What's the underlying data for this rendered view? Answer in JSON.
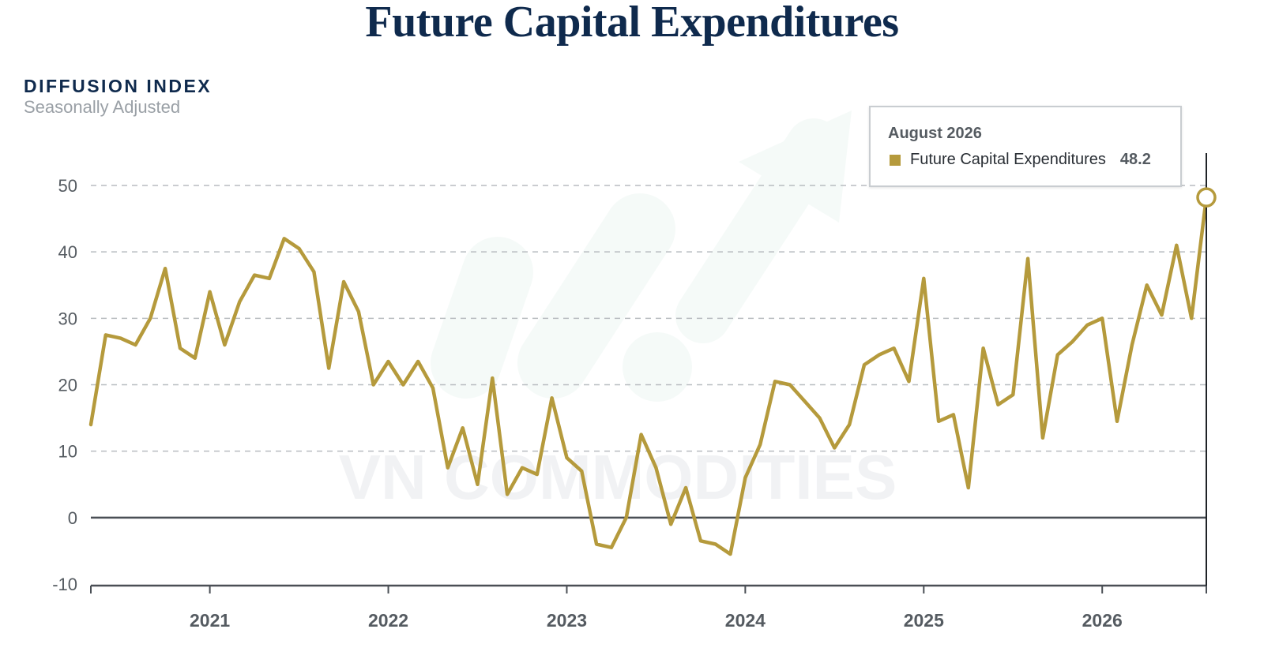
{
  "title": "Future Capital Expenditures",
  "y_axis": {
    "title": "DIFFUSION INDEX",
    "subtitle": "Seasonally Adjusted"
  },
  "watermark": "VN COMMODITIES",
  "tooltip": {
    "date": "August 2026",
    "series": "Future Capital Expenditures",
    "value": "48.2"
  },
  "colors": {
    "series": "#b59a3c",
    "text_dark": "#0f2a4d",
    "axis_text": "#555b61",
    "grid": "#b8bcc0"
  },
  "chart_data": {
    "type": "line",
    "title": "Future Capital Expenditures",
    "ylabel": "DIFFUSION INDEX",
    "ylim": [
      -10,
      50
    ],
    "yticks": [
      50,
      40,
      30,
      20,
      10,
      0,
      -10
    ],
    "xlim": [
      "2020-05",
      "2026-08"
    ],
    "xticks": [
      "2021",
      "2022",
      "2023",
      "2024",
      "2025",
      "2026"
    ],
    "grid": true,
    "legend": "tooltip top-right",
    "series": [
      {
        "name": "Future Capital Expenditures",
        "x": [
          "2020-05",
          "2020-06",
          "2020-07",
          "2020-08",
          "2020-09",
          "2020-10",
          "2020-11",
          "2020-12",
          "2021-01",
          "2021-02",
          "2021-03",
          "2021-04",
          "2021-05",
          "2021-06",
          "2021-07",
          "2021-08",
          "2021-09",
          "2021-10",
          "2021-11",
          "2021-12",
          "2022-01",
          "2022-02",
          "2022-03",
          "2022-04",
          "2022-05",
          "2022-06",
          "2022-07",
          "2022-08",
          "2022-09",
          "2022-10",
          "2022-11",
          "2022-12",
          "2023-01",
          "2023-02",
          "2023-03",
          "2023-04",
          "2023-05",
          "2023-06",
          "2023-07",
          "2023-08",
          "2023-09",
          "2023-10",
          "2023-11",
          "2023-12",
          "2024-01",
          "2024-02",
          "2024-03",
          "2024-04",
          "2024-05",
          "2024-06",
          "2024-07",
          "2024-08",
          "2024-09",
          "2024-10",
          "2024-11",
          "2024-12",
          "2025-01",
          "2025-02",
          "2025-03",
          "2025-04",
          "2025-05",
          "2025-06",
          "2025-07",
          "2025-08",
          "2025-09",
          "2025-10",
          "2025-11",
          "2025-12",
          "2026-01",
          "2026-02",
          "2026-03",
          "2026-04",
          "2026-05",
          "2026-06",
          "2026-07",
          "2026-08"
        ],
        "y": [
          14.0,
          27.5,
          27.0,
          26.0,
          30.0,
          37.5,
          25.5,
          24.0,
          34.0,
          26.0,
          32.5,
          36.5,
          36.0,
          42.0,
          40.5,
          37.0,
          22.5,
          35.5,
          31.0,
          20.0,
          23.5,
          20.0,
          23.5,
          19.5,
          7.5,
          13.5,
          5.0,
          21.0,
          3.5,
          7.5,
          6.5,
          18.0,
          9.0,
          7.0,
          -4.0,
          -4.5,
          0.0,
          12.5,
          7.5,
          -1.0,
          4.5,
          -3.5,
          -4.0,
          -5.5,
          6.0,
          11.0,
          20.5,
          20.0,
          17.5,
          15.0,
          10.5,
          14.0,
          23.0,
          24.5,
          25.5,
          20.5,
          36.0,
          14.5,
          15.5,
          4.5,
          25.5,
          17.0,
          18.5,
          39.0,
          12.0,
          24.5,
          26.5,
          29.0,
          30.0,
          14.5,
          26.0,
          35.0,
          30.5,
          41.0,
          30.0,
          48.2
        ]
      }
    ]
  }
}
